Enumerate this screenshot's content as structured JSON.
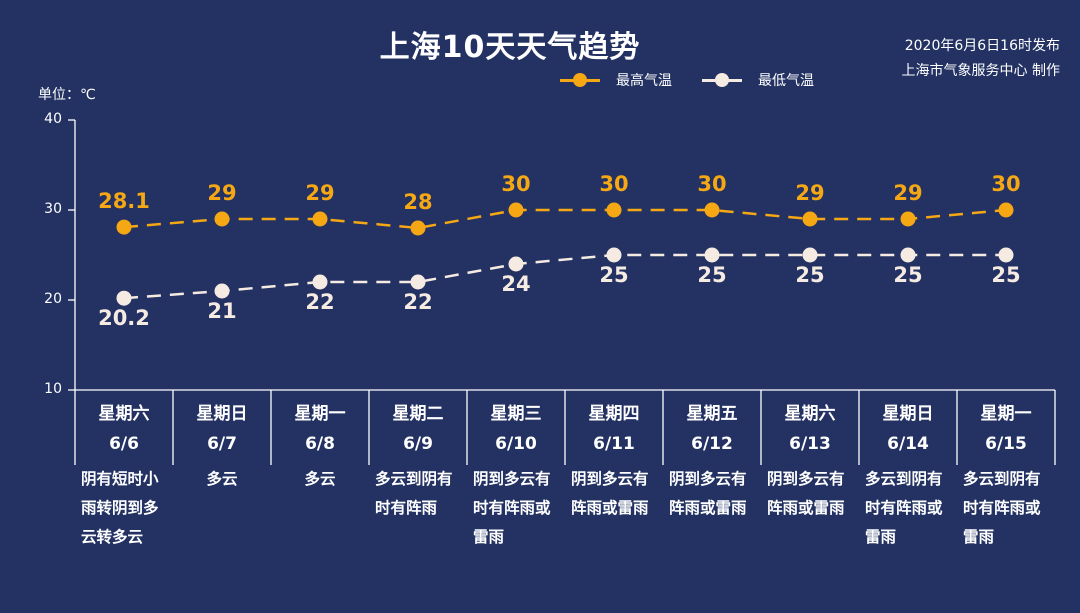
{
  "title": "上海10天天气趋势",
  "publish": {
    "time": "2020年6月6日16时发布",
    "producer": "上海市气象服务中心 制作"
  },
  "unit_label": "单位：℃",
  "legend": [
    {
      "label": "最高气温",
      "color": "#f5a714"
    },
    {
      "label": "最低气温",
      "color": "#f6ebe2"
    }
  ],
  "colors": {
    "background": "#233263",
    "high": "#f5a714",
    "low": "#f6ebe2",
    "axis": "#ffffff"
  },
  "y_ticks": [
    "40",
    "30",
    "20",
    "10"
  ],
  "days": [
    {
      "weekday": "星期六",
      "date": "6/6",
      "desc": "阴有短时小雨转阴到多云转多云"
    },
    {
      "weekday": "星期日",
      "date": "6/7",
      "desc": "多云"
    },
    {
      "weekday": "星期一",
      "date": "6/8",
      "desc": "多云"
    },
    {
      "weekday": "星期二",
      "date": "6/9",
      "desc": "多云到阴有时有阵雨"
    },
    {
      "weekday": "星期三",
      "date": "6/10",
      "desc": "阴到多云有时有阵雨或雷雨"
    },
    {
      "weekday": "星期四",
      "date": "6/11",
      "desc": "阴到多云有阵雨或雷雨"
    },
    {
      "weekday": "星期五",
      "date": "6/12",
      "desc": "阴到多云有阵雨或雷雨"
    },
    {
      "weekday": "星期六",
      "date": "6/13",
      "desc": "阴到多云有阵雨或雷雨"
    },
    {
      "weekday": "星期日",
      "date": "6/14",
      "desc": "多云到阴有时有阵雨或雷雨"
    },
    {
      "weekday": "星期一",
      "date": "6/15",
      "desc": "多云到阴有时有阵雨或雷雨"
    }
  ],
  "high_labels": [
    "28.1",
    "29",
    "29",
    "28",
    "30",
    "30",
    "30",
    "29",
    "29",
    "30"
  ],
  "low_labels": [
    "20.2",
    "21",
    "22",
    "22",
    "24",
    "25",
    "25",
    "25",
    "25",
    "25"
  ],
  "chart_data": {
    "type": "line",
    "title": "上海10天天气趋势",
    "subtitle": "2020年6月6日16时发布 / 上海市气象服务中心 制作",
    "xlabel": "",
    "ylabel": "单位：℃",
    "categories": [
      "6/6",
      "6/7",
      "6/8",
      "6/9",
      "6/10",
      "6/11",
      "6/12",
      "6/13",
      "6/14",
      "6/15"
    ],
    "weekdays": [
      "星期六",
      "星期日",
      "星期一",
      "星期二",
      "星期三",
      "星期四",
      "星期五",
      "星期六",
      "星期日",
      "星期一"
    ],
    "series": [
      {
        "name": "最高气温",
        "color": "#f5a714",
        "style": "dashed",
        "values": [
          28.1,
          29,
          29,
          28,
          30,
          30,
          30,
          29,
          29,
          30
        ]
      },
      {
        "name": "最低气温",
        "color": "#f6ebe2",
        "style": "dashed",
        "values": [
          20.2,
          21,
          22,
          22,
          24,
          25,
          25,
          25,
          25,
          25
        ]
      }
    ],
    "ylim": [
      10,
      40
    ],
    "yticks": [
      10,
      20,
      30,
      40
    ],
    "grid": false,
    "legend_position": "top"
  }
}
